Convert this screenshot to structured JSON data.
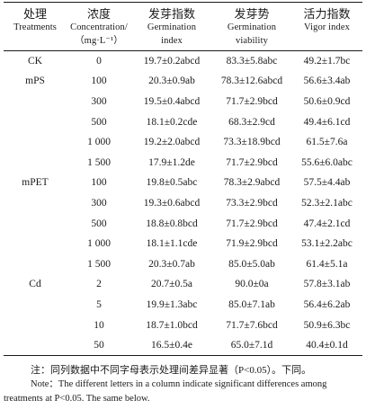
{
  "table": {
    "headers": [
      {
        "cn": "处理",
        "en": "Treatments"
      },
      {
        "cn": "浓度",
        "en": "Concentration/",
        "en2": "（mg·L⁻¹）"
      },
      {
        "cn": "发芽指数",
        "en": "Germination",
        "en2": "index"
      },
      {
        "cn": "发芽势",
        "en": "Germination",
        "en2": "viability"
      },
      {
        "cn": "活力指数",
        "en": "Vigor index",
        "en2": ""
      }
    ],
    "rows": [
      {
        "treatment": "CK",
        "conc": "0",
        "gi": "19.7±0.2abcd",
        "gv": "83.3±5.8abc",
        "vi": "49.2±1.7bc"
      },
      {
        "treatment": "mPS",
        "conc": "100",
        "gi": "20.3±0.9ab",
        "gv": "78.3±12.6abcd",
        "vi": "56.6±3.4ab"
      },
      {
        "treatment": "",
        "conc": "300",
        "gi": "19.5±0.4abcd",
        "gv": "71.7±2.9bcd",
        "vi": "50.6±0.9cd"
      },
      {
        "treatment": "",
        "conc": "500",
        "gi": "18.1±0.2cde",
        "gv": "68.3±2.9cd",
        "vi": "49.4±6.1cd"
      },
      {
        "treatment": "",
        "conc": "1 000",
        "gi": "19.2±2.0abcd",
        "gv": "73.3±18.9bcd",
        "vi": "61.5±7.6a"
      },
      {
        "treatment": "",
        "conc": "1 500",
        "gi": "17.9±1.2de",
        "gv": "71.7±2.9bcd",
        "vi": "55.6±6.0abc"
      },
      {
        "treatment": "mPET",
        "conc": "100",
        "gi": "19.8±0.5abc",
        "gv": "78.3±2.9abcd",
        "vi": "57.5±4.4ab"
      },
      {
        "treatment": "",
        "conc": "300",
        "gi": "19.3±0.6abcd",
        "gv": "73.3±2.9bcd",
        "vi": "52.3±2.1abc"
      },
      {
        "treatment": "",
        "conc": "500",
        "gi": "18.8±0.8bcd",
        "gv": "71.7±2.9bcd",
        "vi": "47.4±2.1cd"
      },
      {
        "treatment": "",
        "conc": "1 000",
        "gi": "18.1±1.1cde",
        "gv": "71.9±2.9bcd",
        "vi": "53.1±2.2abc"
      },
      {
        "treatment": "",
        "conc": "1 500",
        "gi": "20.3±0.7ab",
        "gv": "85.0±5.0ab",
        "vi": "61.4±5.1a"
      },
      {
        "treatment": "Cd",
        "conc": "2",
        "gi": "20.7±0.5a",
        "gv": "90.0±0a",
        "vi": "57.8±3.1ab"
      },
      {
        "treatment": "",
        "conc": "5",
        "gi": "19.9±1.3abc",
        "gv": "85.0±7.1ab",
        "vi": "56.4±6.2ab"
      },
      {
        "treatment": "",
        "conc": "10",
        "gi": "18.7±1.0bcd",
        "gv": "71.7±7.6bcd",
        "vi": "50.9±6.3bc"
      },
      {
        "treatment": "",
        "conc": "50",
        "gi": "16.5±0.4e",
        "gv": "65.0±7.1d",
        "vi": "40.4±0.1d"
      }
    ]
  },
  "note": {
    "cn": "注：同列数据中不同字母表示处理间差异显著（P<0.05）。下同。",
    "en": "Note：The different letters in a column indicate significant differences among treatments at P<0.05. The same below."
  }
}
